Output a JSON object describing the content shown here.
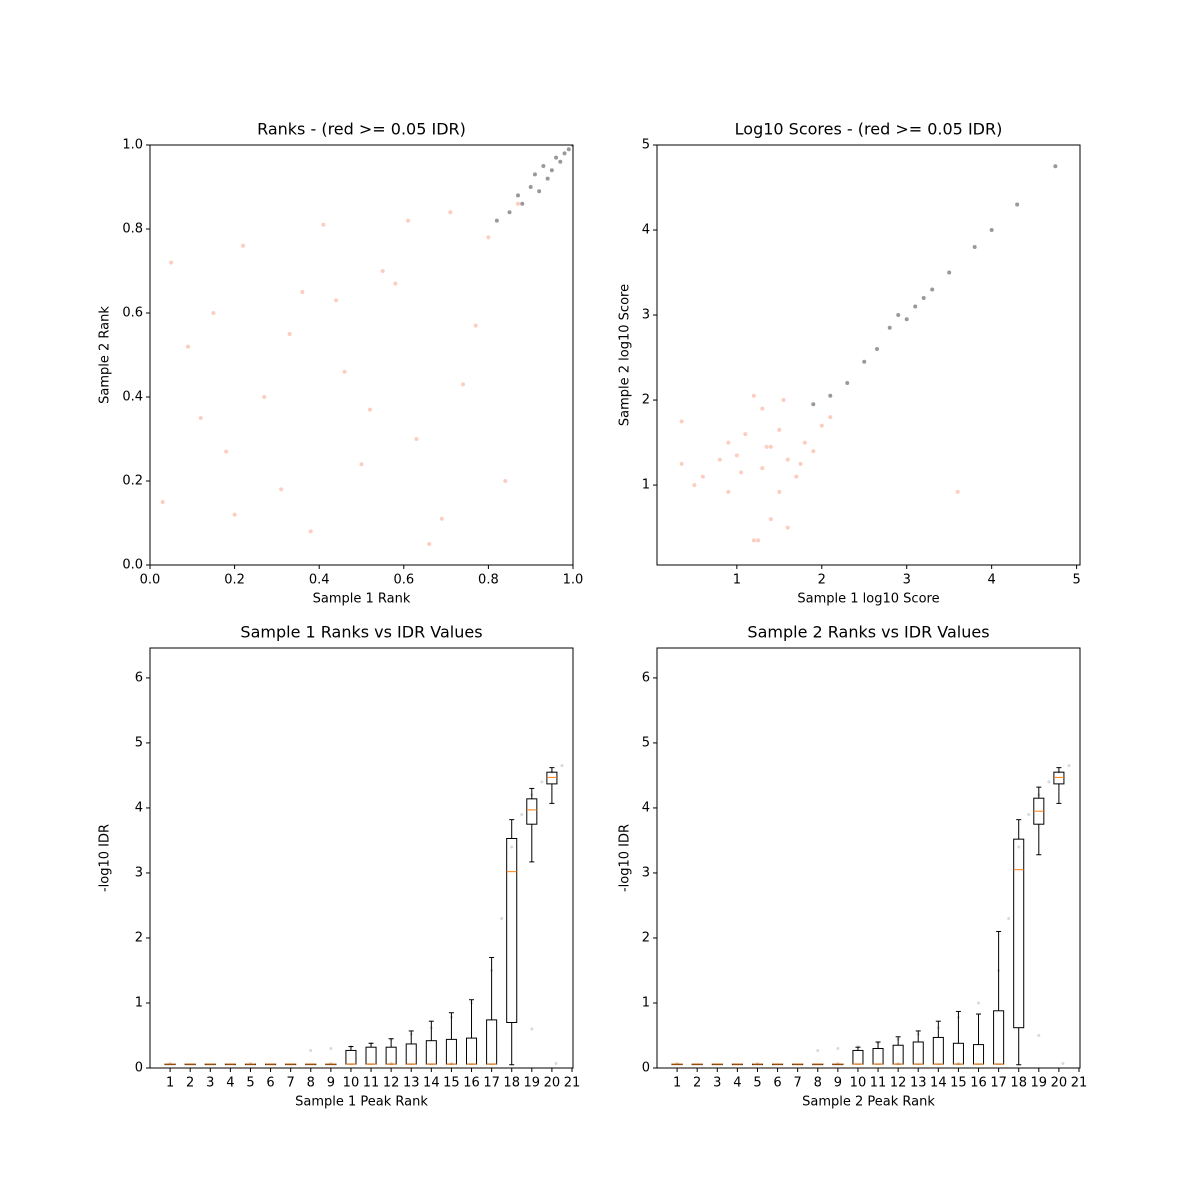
{
  "chart_data": [
    {
      "type": "scatter",
      "title": "Ranks - (red >= 0.05 IDR)",
      "xlabel": "Sample 1 Rank",
      "ylabel": "Sample 2 Rank",
      "xlim": [
        0,
        1
      ],
      "ylim": [
        0,
        1
      ],
      "xticks": [
        {
          "value": 0,
          "label": "0.0"
        },
        0.2,
        0.4,
        0.6,
        0.8,
        {
          "value": 1,
          "label": "1.0"
        }
      ],
      "yticks": [
        {
          "value": 0,
          "label": "0.0"
        },
        0.2,
        0.4,
        0.6,
        0.8,
        {
          "value": 1,
          "label": "1.0"
        }
      ],
      "series": [
        {
          "color": "#f4845f",
          "x": [
            0.05,
            0.12,
            0.2,
            0.33,
            0.41,
            0.5,
            0.58,
            0.66,
            0.74,
            0.8,
            0.03,
            0.15,
            0.27,
            0.38,
            0.46,
            0.55,
            0.63,
            0.71,
            0.84,
            0.09,
            0.22,
            0.31,
            0.44,
            0.52,
            0.61,
            0.69,
            0.77,
            0.18,
            0.36,
            0.87
          ],
          "y": [
            0.72,
            0.35,
            0.12,
            0.55,
            0.81,
            0.24,
            0.67,
            0.05,
            0.43,
            0.78,
            0.15,
            0.6,
            0.4,
            0.08,
            0.46,
            0.7,
            0.3,
            0.84,
            0.2,
            0.52,
            0.76,
            0.18,
            0.63,
            0.37,
            0.82,
            0.11,
            0.57,
            0.27,
            0.65,
            0.86
          ]
        },
        {
          "color": "#000000",
          "x": [
            0.82,
            0.85,
            0.87,
            0.88,
            0.9,
            0.91,
            0.92,
            0.93,
            0.94,
            0.95,
            0.96,
            0.97,
            0.98,
            0.99,
            1.0
          ],
          "y": [
            0.82,
            0.84,
            0.88,
            0.86,
            0.9,
            0.93,
            0.89,
            0.95,
            0.92,
            0.94,
            0.97,
            0.96,
            0.98,
            0.99,
            1.0
          ]
        }
      ]
    },
    {
      "type": "scatter",
      "title": "Log10 Scores - (red >= 0.05 IDR)",
      "xlabel": "Sample 1 log10 Score",
      "ylabel": "Sample 2 log10 Score",
      "xlim": [
        0.06,
        5.04
      ],
      "ylim": [
        0.06,
        5.0
      ],
      "xticks": [
        1,
        2,
        3,
        4,
        5
      ],
      "yticks": [
        1,
        2,
        3,
        4,
        5
      ],
      "series": [
        {
          "color": "#f4845f",
          "x": [
            0.35,
            0.35,
            0.6,
            0.9,
            0.9,
            1.0,
            1.1,
            1.2,
            1.3,
            1.3,
            1.4,
            1.5,
            1.5,
            1.6,
            1.7,
            1.8,
            1.9,
            2.0,
            1.2,
            1.4,
            0.8,
            1.6,
            1.35,
            1.05,
            2.1,
            1.75,
            0.5,
            1.25,
            1.55,
            3.6
          ],
          "y": [
            1.25,
            1.75,
            1.1,
            0.92,
            1.5,
            1.35,
            1.6,
            0.35,
            1.2,
            1.9,
            1.45,
            0.92,
            1.65,
            1.3,
            1.1,
            1.5,
            1.4,
            1.7,
            2.05,
            0.6,
            1.3,
            0.5,
            1.45,
            1.15,
            1.8,
            1.25,
            1.0,
            0.35,
            2.0,
            0.92
          ]
        },
        {
          "color": "#000000",
          "x": [
            1.9,
            2.1,
            2.3,
            2.5,
            2.65,
            2.8,
            2.9,
            3.0,
            3.1,
            3.2,
            3.3,
            3.5,
            3.8,
            4.0,
            4.3,
            4.75
          ],
          "y": [
            1.95,
            2.05,
            2.2,
            2.45,
            2.6,
            2.85,
            3.0,
            2.95,
            3.1,
            3.2,
            3.3,
            3.5,
            3.8,
            4.0,
            4.3,
            4.75
          ]
        }
      ]
    },
    {
      "type": "box",
      "title": "Sample 1 Ranks vs IDR Values",
      "xlabel": "Sample 1 Peak Rank",
      "ylabel": "-log10 IDR",
      "xlim": [
        0,
        21.05
      ],
      "ylim": [
        0,
        6.46
      ],
      "xticks": [
        1,
        2,
        3,
        4,
        5,
        6,
        7,
        8,
        9,
        10,
        11,
        12,
        13,
        14,
        15,
        16,
        17,
        18,
        19,
        20,
        21
      ],
      "yticks": [
        0,
        1,
        2,
        3,
        4,
        5,
        6
      ],
      "points": {
        "color": "#808080",
        "x": [
          8,
          9,
          10,
          11,
          12,
          13,
          14,
          15,
          16,
          17,
          17.5,
          18,
          18.5,
          19,
          19.5,
          20,
          20.5,
          1,
          5,
          9,
          12,
          15,
          19,
          20.2
        ],
        "y": [
          0.27,
          0.3,
          0.33,
          0.38,
          0.44,
          0.52,
          0.62,
          0.78,
          1.0,
          1.5,
          2.3,
          3.4,
          3.9,
          4.2,
          4.4,
          4.55,
          4.65,
          0.07,
          0.07,
          0.07,
          0.07,
          0.07,
          0.6,
          0.07
        ]
      },
      "median_color": "#ff7f0e",
      "positions": [
        1,
        2,
        3,
        4,
        5,
        6,
        7,
        8,
        9,
        10,
        11,
        12,
        13,
        14,
        15,
        16,
        17,
        18,
        19,
        20
      ],
      "whislo": [
        0.06,
        0.06,
        0.06,
        0.06,
        0.06,
        0.06,
        0.06,
        0.06,
        0.06,
        0.06,
        0.06,
        0.06,
        0.06,
        0.06,
        0.06,
        0.06,
        0.06,
        0.05,
        3.17,
        4.07
      ],
      "q1": [
        0.06,
        0.06,
        0.06,
        0.06,
        0.06,
        0.06,
        0.06,
        0.06,
        0.06,
        0.06,
        0.06,
        0.06,
        0.06,
        0.06,
        0.06,
        0.06,
        0.06,
        0.7,
        3.75,
        4.37
      ],
      "median": [
        0.06,
        0.06,
        0.06,
        0.06,
        0.06,
        0.06,
        0.06,
        0.06,
        0.06,
        0.06,
        0.06,
        0.06,
        0.06,
        0.06,
        0.06,
        0.06,
        0.06,
        3.02,
        3.97,
        4.47
      ],
      "q3": [
        0.06,
        0.06,
        0.06,
        0.06,
        0.06,
        0.06,
        0.06,
        0.06,
        0.06,
        0.27,
        0.32,
        0.32,
        0.37,
        0.42,
        0.44,
        0.46,
        0.74,
        3.53,
        4.14,
        4.55
      ],
      "whishi": [
        0.06,
        0.06,
        0.06,
        0.06,
        0.06,
        0.06,
        0.06,
        0.06,
        0.06,
        0.33,
        0.38,
        0.45,
        0.57,
        0.72,
        0.85,
        1.05,
        1.7,
        3.82,
        4.3,
        4.62
      ]
    },
    {
      "type": "box",
      "title": "Sample 2 Ranks vs IDR Values",
      "xlabel": "Sample 2 Peak Rank",
      "ylabel": "-log10 IDR",
      "xlim": [
        0,
        21.05
      ],
      "ylim": [
        0,
        6.46
      ],
      "xticks": [
        1,
        2,
        3,
        4,
        5,
        6,
        7,
        8,
        9,
        10,
        11,
        12,
        13,
        14,
        15,
        16,
        17,
        18,
        19,
        20,
        21
      ],
      "yticks": [
        0,
        1,
        2,
        3,
        4,
        5,
        6
      ],
      "points": {
        "color": "#808080",
        "x": [
          8,
          9,
          10,
          11,
          12,
          13,
          14,
          15,
          16,
          17,
          17.5,
          18,
          18.5,
          19,
          19.5,
          20,
          20.5,
          1,
          5,
          9,
          12,
          15,
          19,
          20.2
        ],
        "y": [
          0.27,
          0.3,
          0.33,
          0.38,
          0.44,
          0.52,
          0.62,
          0.78,
          1.0,
          1.5,
          2.3,
          3.4,
          3.9,
          4.2,
          4.4,
          4.55,
          4.65,
          0.07,
          0.07,
          0.07,
          0.07,
          0.07,
          0.5,
          0.07
        ]
      },
      "median_color": "#ff7f0e",
      "positions": [
        1,
        2,
        3,
        4,
        5,
        6,
        7,
        8,
        9,
        10,
        11,
        12,
        13,
        14,
        15,
        16,
        17,
        18,
        19,
        20
      ],
      "whislo": [
        0.06,
        0.06,
        0.06,
        0.06,
        0.06,
        0.06,
        0.06,
        0.06,
        0.06,
        0.06,
        0.06,
        0.06,
        0.06,
        0.06,
        0.06,
        0.06,
        0.06,
        0.05,
        3.28,
        4.07
      ],
      "q1": [
        0.06,
        0.06,
        0.06,
        0.06,
        0.06,
        0.06,
        0.06,
        0.06,
        0.06,
        0.06,
        0.06,
        0.06,
        0.06,
        0.06,
        0.06,
        0.06,
        0.06,
        0.62,
        3.75,
        4.37
      ],
      "median": [
        0.06,
        0.06,
        0.06,
        0.06,
        0.06,
        0.06,
        0.06,
        0.06,
        0.06,
        0.06,
        0.06,
        0.06,
        0.06,
        0.06,
        0.06,
        0.06,
        0.06,
        3.05,
        3.95,
        4.47
      ],
      "q3": [
        0.06,
        0.06,
        0.06,
        0.06,
        0.06,
        0.06,
        0.06,
        0.06,
        0.06,
        0.27,
        0.3,
        0.35,
        0.4,
        0.47,
        0.38,
        0.36,
        0.88,
        3.52,
        4.15,
        4.55
      ],
      "whishi": [
        0.06,
        0.06,
        0.06,
        0.06,
        0.06,
        0.06,
        0.06,
        0.06,
        0.06,
        0.32,
        0.4,
        0.48,
        0.57,
        0.72,
        0.87,
        0.83,
        2.1,
        3.82,
        4.32,
        4.62
      ]
    }
  ]
}
